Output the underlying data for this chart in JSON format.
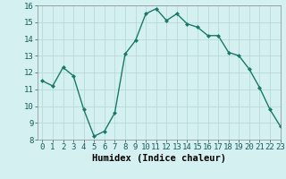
{
  "x": [
    0,
    1,
    2,
    3,
    4,
    5,
    6,
    7,
    8,
    9,
    10,
    11,
    12,
    13,
    14,
    15,
    16,
    17,
    18,
    19,
    20,
    21,
    22,
    23
  ],
  "y": [
    11.5,
    11.2,
    12.3,
    11.8,
    9.8,
    8.2,
    8.5,
    9.6,
    13.1,
    13.9,
    15.5,
    15.8,
    15.1,
    15.5,
    14.9,
    14.7,
    14.2,
    14.2,
    13.2,
    13.0,
    12.2,
    11.1,
    9.8,
    8.8
  ],
  "line_color": "#1a7a6a",
  "marker": "D",
  "marker_size": 2,
  "bg_color": "#d4f0f0",
  "grid_color": "#b8dada",
  "xlabel": "Humidex (Indice chaleur)",
  "ylim": [
    8,
    16
  ],
  "xlim": [
    -0.5,
    23
  ],
  "yticks": [
    8,
    9,
    10,
    11,
    12,
    13,
    14,
    15,
    16
  ],
  "xticks": [
    0,
    1,
    2,
    3,
    4,
    5,
    6,
    7,
    8,
    9,
    10,
    11,
    12,
    13,
    14,
    15,
    16,
    17,
    18,
    19,
    20,
    21,
    22,
    23
  ],
  "xlabel_fontsize": 7.5,
  "tick_fontsize": 6.5
}
